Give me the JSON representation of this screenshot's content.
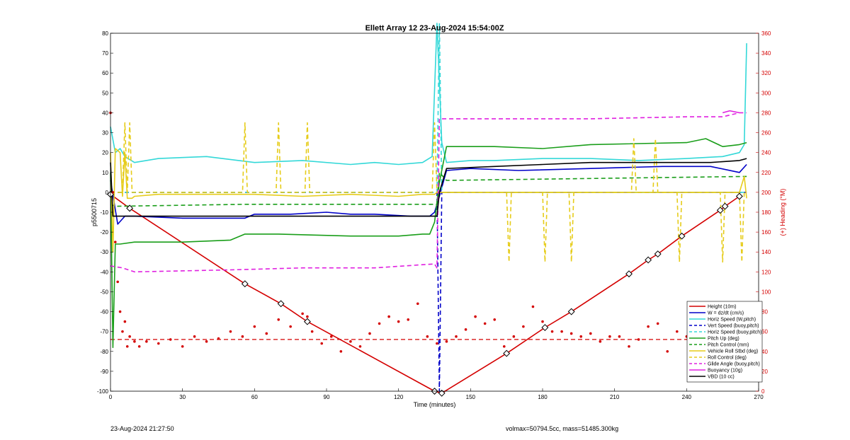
{
  "footer": {
    "timestamp": "23-Aug-2024 21:27:50",
    "vol_mass": "volmax=50794.5cc, mass=51485.300kg"
  },
  "chart_data": {
    "type": "line",
    "title": "Ellett Array 12 23-Aug-2024 15:54:00Z",
    "xlabel": "Time (minutes)",
    "ylabel": "p5500715",
    "ylabel_right": "(+) Heading (°M)",
    "xlim": [
      0,
      270
    ],
    "ylim": [
      -100,
      80
    ],
    "ylim_right": [
      0,
      360
    ],
    "xticks": [
      0,
      30,
      60,
      90,
      120,
      150,
      180,
      210,
      240,
      270
    ],
    "yticks": [
      -100,
      -90,
      -80,
      -70,
      -60,
      -50,
      -40,
      -30,
      -20,
      -10,
      0,
      10,
      20,
      30,
      40,
      50,
      60,
      70,
      80
    ],
    "yticks_right": [
      0,
      20,
      40,
      60,
      80,
      100,
      120,
      140,
      160,
      180,
      200,
      220,
      240,
      260,
      280,
      300,
      320,
      340,
      360
    ],
    "legend_position": "bottom-right",
    "colors": {
      "red": "#d40000",
      "blue": "#0000c8",
      "cyan": "#33d8d8",
      "green": "#1a9e1a",
      "yellow": "#e6cc1a",
      "magenta": "#e020e0",
      "black": "#000000"
    },
    "series": [
      {
        "name": "Height (10m)",
        "color": "red",
        "style": "solid",
        "x": [
          0,
          8,
          56,
          71,
          82,
          135,
          138,
          165,
          181,
          192,
          216,
          224,
          228,
          238,
          254,
          256,
          262
        ],
        "y": [
          -1,
          -8,
          -46,
          -56,
          -65,
          -100,
          -101,
          -81,
          -68,
          -60,
          -41,
          -34,
          -31,
          -22,
          -9,
          -7,
          -2
        ]
      },
      {
        "name": "W = dz/dt (cm/s)",
        "color": "blue",
        "style": "solid",
        "x": [
          0,
          3,
          6,
          10,
          30,
          56,
          60,
          75,
          90,
          100,
          110,
          125,
          133,
          135,
          137,
          140,
          150,
          170,
          200,
          230,
          250,
          262,
          265
        ],
        "y": [
          6,
          -16,
          -12,
          -12,
          -13,
          -13,
          -11,
          -11,
          -10,
          -11,
          -11,
          -12,
          -12,
          -10,
          -2,
          11,
          12,
          11,
          12,
          13,
          13,
          10,
          14
        ]
      },
      {
        "name": "Horiz Speed (W,pitch)",
        "color": "cyan",
        "style": "solid",
        "x": [
          0,
          2,
          4,
          6,
          10,
          20,
          40,
          60,
          80,
          100,
          110,
          120,
          130,
          134,
          136,
          138,
          140,
          150,
          160,
          180,
          200,
          220,
          240,
          255,
          262,
          264,
          265
        ],
        "y": [
          33,
          20,
          22,
          18,
          15,
          17,
          18,
          15,
          16,
          14,
          15,
          14,
          15,
          18,
          85,
          25,
          15,
          16,
          16,
          17,
          17,
          16,
          17,
          18,
          20,
          24,
          75
        ]
      },
      {
        "name": "Vert Speed (buoy,pitch)",
        "color": "blue",
        "style": "dashed",
        "x": [
          0,
          10,
          133,
          136,
          137,
          138,
          140,
          265
        ],
        "y": [
          0,
          0,
          0,
          0,
          -100,
          0,
          0,
          0
        ]
      },
      {
        "name": "Horiz Speed (buoy,pitch)",
        "color": "cyan",
        "style": "dashed",
        "x": [
          0,
          135,
          136,
          137,
          138,
          265
        ],
        "y": [
          0,
          0,
          0,
          85,
          0,
          0
        ]
      },
      {
        "name": "Pitch Up (deg)",
        "color": "green",
        "style": "solid",
        "x": [
          0,
          1,
          2,
          4,
          10,
          30,
          50,
          56,
          70,
          100,
          120,
          130,
          133,
          135,
          137,
          140,
          160,
          180,
          200,
          240,
          248,
          255,
          262,
          265
        ],
        "y": [
          10,
          -78,
          -26,
          -26,
          -25,
          -25,
          -24,
          -21,
          -21,
          -22,
          -22,
          -21,
          -21,
          -15,
          5,
          23,
          23,
          22,
          24,
          25,
          27,
          23,
          24,
          25
        ]
      },
      {
        "name": "Pitch Control (mm)",
        "color": "green",
        "style": "dashed",
        "x": [
          0,
          2,
          56,
          135,
          136,
          137,
          140,
          265
        ],
        "y": [
          -6,
          -7,
          -6,
          -6,
          -6,
          10,
          6,
          8
        ]
      },
      {
        "name": "Vehicle Roll Stbd (deg)",
        "color": "yellow",
        "style": "solid",
        "x": [
          0,
          1,
          2,
          4,
          5,
          6,
          7,
          9,
          10,
          20,
          60,
          80,
          100,
          120,
          130,
          135,
          136,
          137,
          140,
          200,
          250,
          262,
          264,
          265
        ],
        "y": [
          20,
          -30,
          22,
          20,
          -2,
          20,
          -3,
          -3,
          -2,
          -1,
          -1,
          -2,
          -1,
          -2,
          -1,
          -1,
          0,
          0,
          0,
          0,
          0,
          0,
          8,
          -3
        ]
      },
      {
        "name": "Roll Control (deg)",
        "color": "yellow",
        "style": "dashed",
        "x": [
          0,
          5,
          6,
          7,
          8,
          9,
          10,
          55,
          56,
          57,
          69,
          70,
          71,
          81,
          82,
          83,
          134,
          135,
          136,
          137,
          165,
          166,
          167,
          180,
          181,
          182,
          191,
          192,
          193,
          217,
          218,
          219,
          226,
          227,
          228,
          236,
          237,
          238,
          254,
          255,
          256,
          262,
          263,
          264
        ],
        "y": [
          0,
          0,
          35,
          0,
          35,
          0,
          0,
          0,
          35,
          0,
          0,
          35,
          0,
          0,
          35,
          0,
          0,
          35,
          0,
          0,
          0,
          -35,
          0,
          0,
          -35,
          0,
          0,
          -35,
          0,
          0,
          27,
          0,
          0,
          27,
          0,
          0,
          -35,
          0,
          0,
          -35,
          0,
          0,
          -35,
          0
        ]
      },
      {
        "name": "Glide Angle (buoy,pitch)",
        "color": "magenta",
        "style": "dashed",
        "x": [
          0,
          5,
          10,
          50,
          80,
          110,
          135,
          136,
          137,
          138,
          160,
          200,
          240,
          255,
          262,
          265
        ],
        "y": [
          -37,
          -38,
          -40,
          -39,
          -38,
          -38,
          -36,
          -38,
          37,
          37,
          37,
          37,
          38,
          38,
          40,
          40
        ]
      },
      {
        "name": "Buoyancy (10g)",
        "color": "magenta",
        "style": "solid",
        "x": [
          255,
          258,
          262
        ],
        "y": [
          40,
          41,
          40
        ]
      },
      {
        "name": "VBD (10 cc)",
        "color": "black",
        "style": "solid",
        "x": [
          0,
          1,
          3,
          56,
          134,
          136,
          137,
          140,
          160,
          180,
          200,
          250,
          262,
          265
        ],
        "y": [
          15,
          -12,
          -12,
          -12,
          -12,
          -12,
          0,
          12,
          13,
          14,
          15,
          15,
          16,
          17
        ]
      }
    ],
    "heading_target": {
      "color": "red",
      "style": "dashed",
      "y_right": 52
    },
    "heading_scatter": {
      "color": "red",
      "x": [
        0,
        1,
        2,
        3,
        4,
        5,
        6,
        7,
        8,
        10,
        12,
        15,
        20,
        25,
        30,
        35,
        40,
        45,
        50,
        55,
        60,
        65,
        70,
        75,
        80,
        82,
        84,
        88,
        92,
        96,
        100,
        104,
        108,
        112,
        116,
        120,
        124,
        128,
        132,
        136,
        140,
        144,
        148,
        152,
        156,
        160,
        164,
        168,
        172,
        176,
        180,
        184,
        188,
        192,
        196,
        200,
        204,
        208,
        212,
        216,
        220,
        224,
        228,
        232,
        236,
        240,
        244,
        248,
        252,
        256,
        260,
        264
      ],
      "y_right": [
        280,
        200,
        150,
        110,
        80,
        60,
        70,
        45,
        55,
        50,
        45,
        50,
        48,
        52,
        45,
        55,
        50,
        53,
        60,
        55,
        65,
        58,
        72,
        65,
        78,
        75,
        60,
        48,
        55,
        40,
        50,
        45,
        58,
        68,
        75,
        70,
        72,
        88,
        55,
        48,
        50,
        55,
        62,
        75,
        68,
        72,
        45,
        55,
        65,
        85,
        70,
        60,
        60,
        58,
        55,
        58,
        50,
        55,
        55,
        45,
        52,
        65,
        68,
        40,
        60,
        55,
        65,
        70,
        68,
        62,
        65,
        58
      ]
    }
  }
}
